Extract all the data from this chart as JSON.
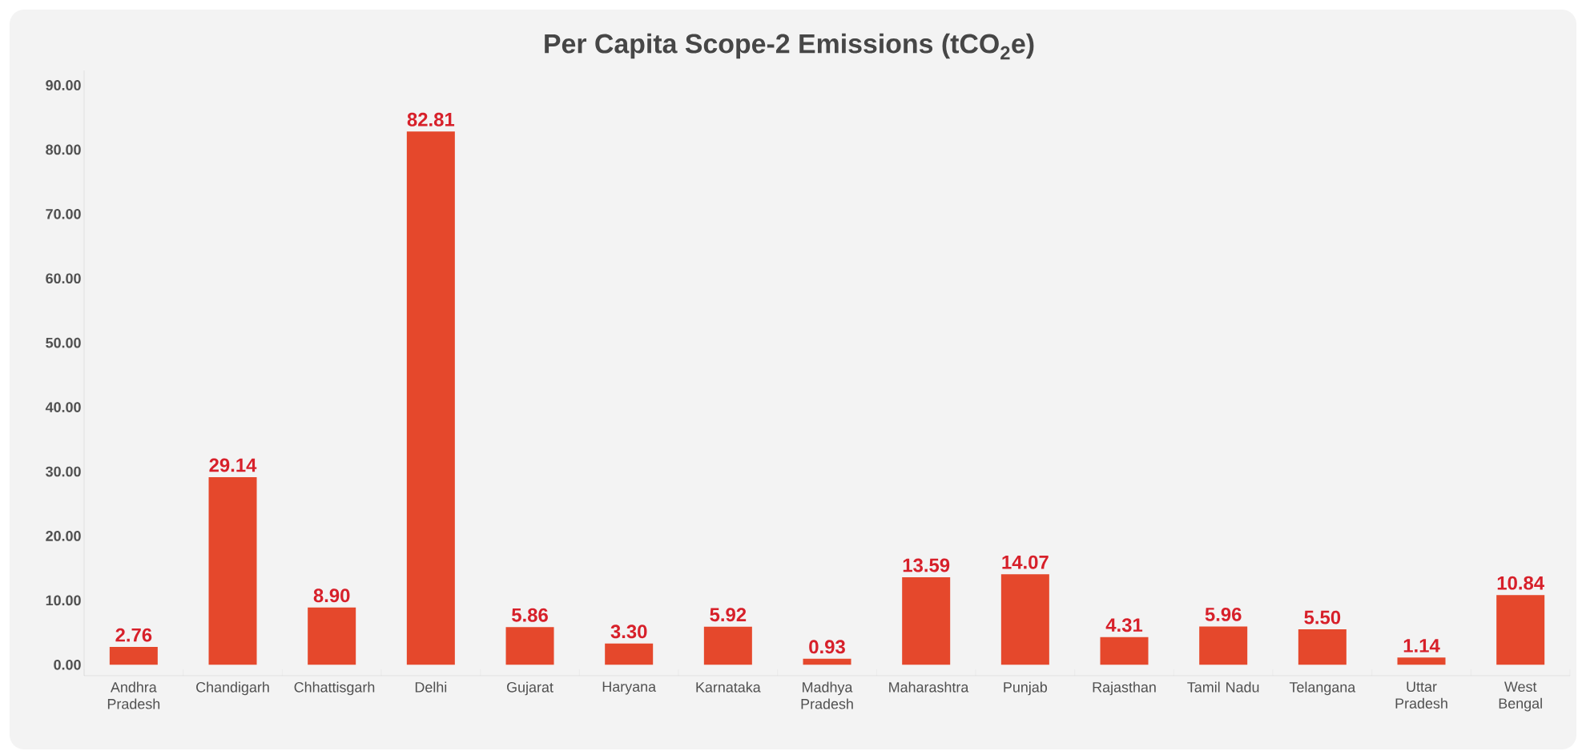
{
  "chart_data": {
    "type": "bar",
    "title": "Per Capita Scope-2 Emissions (tCO$_{2}$e)",
    "categories": [
      "Andhra Pradesh",
      "Chandigarh",
      "Chhattisgarh",
      "Delhi",
      "Gujarat",
      "Haryana",
      "Karnataka",
      "Madhya Pradesh",
      "Maharashtra",
      "Punjab",
      "Rajasthan",
      "Tamil Nadu",
      "Telangana",
      "Uttar Pradesh",
      "West Bengal"
    ],
    "values": [
      2.76,
      29.14,
      8.9,
      82.81,
      5.86,
      3.3,
      5.92,
      0.93,
      13.59,
      14.07,
      4.31,
      5.96,
      5.5,
      1.14,
      10.84
    ],
    "color": "#e5482c",
    "ylim": [
      -1.7,
      92.3
    ],
    "yticks": [
      {
        "value": 0,
        "label": "0.00"
      },
      {
        "value": 10,
        "label": "10.00"
      },
      {
        "value": 20,
        "label": "20.00"
      },
      {
        "value": 30,
        "label": "30.00"
      },
      {
        "value": 40,
        "label": "40.00"
      },
      {
        "value": 50,
        "label": "50.00"
      },
      {
        "value": 60,
        "label": "60.00"
      },
      {
        "value": 70,
        "label": "70.00"
      },
      {
        "value": 80,
        "label": "80.00"
      },
      {
        "value": 90,
        "label": "90.00"
      }
    ],
    "value_labels": [
      "2.76",
      "29.14",
      "8.90",
      "82.81",
      "5.86",
      "3.30",
      "5.92",
      "0.93",
      "13.59",
      "14.07",
      "4.31",
      "5.96",
      "5.50",
      "1.14",
      "10.84"
    ],
    "grid": false
  }
}
